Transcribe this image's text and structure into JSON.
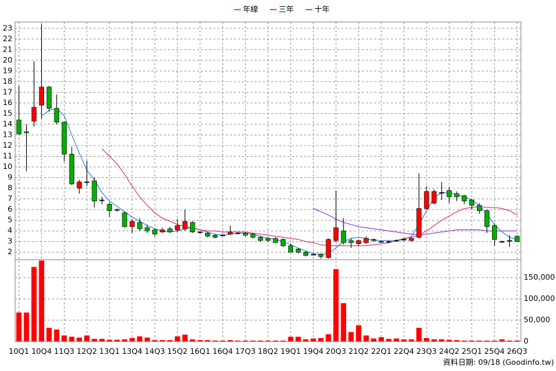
{
  "chart_data": {
    "type": "candlestick",
    "categories": [
      "10Q1",
      null,
      null,
      "10Q4",
      null,
      null,
      "11Q3",
      null,
      null,
      "12Q2",
      null,
      null,
      "13Q1",
      null,
      null,
      "13Q4",
      null,
      null,
      "14Q3",
      null,
      null,
      "15Q2",
      null,
      null,
      "16Q1",
      null,
      null,
      "16Q4",
      null,
      null,
      "17Q3",
      null,
      null,
      "18Q2",
      null,
      null,
      "19Q1",
      null,
      null,
      "19Q4",
      null,
      null,
      "20Q3",
      null,
      null,
      "21Q2",
      null,
      null,
      "22Q1",
      null,
      null,
      "22Q4",
      null,
      null,
      "23Q3",
      null,
      null,
      "24Q2",
      null,
      null,
      "25Q1",
      null,
      null,
      "25Q4",
      null,
      null,
      "26Q3"
    ],
    "open": [
      14.4,
      13.3,
      14.3,
      15.8,
      17.5,
      15.5,
      14.2,
      11.2,
      8.0,
      8.6,
      8.7,
      6.9,
      6.5,
      6.0,
      5.7,
      4.4,
      4.8,
      4.3,
      4.1,
      3.9,
      4.2,
      4.1,
      4.2,
      4.8,
      3.9,
      3.8,
      3.6,
      3.6,
      3.7,
      3.8,
      3.8,
      3.7,
      3.4,
      3.3,
      3.3,
      3.2,
      2.6,
      2.3,
      2.0,
      1.8,
      1.8,
      1.5,
      3.1,
      4.0,
      3.1,
      2.8,
      2.9,
      3.2,
      3.0,
      3.0,
      3.1,
      3.2,
      3.1,
      3.4,
      6.1,
      6.6,
      7.6,
      7.8,
      7.5,
      7.3,
      6.9,
      6.4,
      5.9,
      4.5,
      3.0,
      3.1,
      3.5
    ],
    "high": [
      17.6,
      14.0,
      19.9,
      23.4,
      17.6,
      16.8,
      14.3,
      11.9,
      8.8,
      10.6,
      9.0,
      7.2,
      6.7,
      6.1,
      5.8,
      5.1,
      5.2,
      4.6,
      4.2,
      4.3,
      4.4,
      5.1,
      6.0,
      4.9,
      4.0,
      3.9,
      3.7,
      3.7,
      4.5,
      3.9,
      3.9,
      3.8,
      3.5,
      3.4,
      3.4,
      3.3,
      2.8,
      2.4,
      2.1,
      1.9,
      1.9,
      3.3,
      7.8,
      5.2,
      3.3,
      3.2,
      3.5,
      3.3,
      3.1,
      3.1,
      3.2,
      3.3,
      3.4,
      9.4,
      8.2,
      7.9,
      8.6,
      8.1,
      7.7,
      7.4,
      7.0,
      6.6,
      6.0,
      4.7,
      3.1,
      3.6,
      3.6
    ],
    "low": [
      13.0,
      9.6,
      13.8,
      14.5,
      15.2,
      14.0,
      10.5,
      8.3,
      7.5,
      8.2,
      6.2,
      6.5,
      5.3,
      5.8,
      4.3,
      3.8,
      4.0,
      3.8,
      3.5,
      3.8,
      3.8,
      3.9,
      4.0,
      3.8,
      3.7,
      3.4,
      3.3,
      3.5,
      3.6,
      3.7,
      3.5,
      3.3,
      3.0,
      3.0,
      2.9,
      2.5,
      2.0,
      1.9,
      1.6,
      1.7,
      1.4,
      1.4,
      2.9,
      2.7,
      2.4,
      2.6,
      2.8,
      3.0,
      2.9,
      2.9,
      3.0,
      3.1,
      3.0,
      3.3,
      6.0,
      6.5,
      6.9,
      6.6,
      6.8,
      6.5,
      6.0,
      5.6,
      3.8,
      2.6,
      2.9,
      2.5,
      3.0
    ],
    "close": [
      13.1,
      13.2,
      15.6,
      17.5,
      15.5,
      14.2,
      11.2,
      8.4,
      8.6,
      8.6,
      6.8,
      6.9,
      5.9,
      6.0,
      4.4,
      4.9,
      4.2,
      4.0,
      3.7,
      4.1,
      3.9,
      4.5,
      4.9,
      3.9,
      3.9,
      3.5,
      3.4,
      3.6,
      3.9,
      3.8,
      3.6,
      3.4,
      3.1,
      3.1,
      2.9,
      2.6,
      2.0,
      2.0,
      1.7,
      1.8,
      1.6,
      3.2,
      4.3,
      2.9,
      2.9,
      3.1,
      3.3,
      3.1,
      3.0,
      3.0,
      3.1,
      3.2,
      3.3,
      6.1,
      7.7,
      7.7,
      7.6,
      7.2,
      7.2,
      6.8,
      6.4,
      5.9,
      4.4,
      3.2,
      3.0,
      3.1,
      3.0
    ],
    "up_color": "#ff0000",
    "down_color": "#00b000",
    "lines": [
      {
        "name": "年線",
        "color": "#1c7fd4",
        "values": [
          null,
          null,
          null,
          14.8,
          15.3,
          15.5,
          14.8,
          13.0,
          11.3,
          9.7,
          8.8,
          7.6,
          6.8,
          6.3,
          5.8,
          5.3,
          4.9,
          4.5,
          4.2,
          4.0,
          3.9,
          4.0,
          4.2,
          4.3,
          4.1,
          3.9,
          3.7,
          3.6,
          3.7,
          3.8,
          3.8,
          3.7,
          3.5,
          3.3,
          3.2,
          3.0,
          2.7,
          2.4,
          2.1,
          1.9,
          1.8,
          1.9,
          2.4,
          3.0,
          3.3,
          3.4,
          3.3,
          3.1,
          3.1,
          3.1,
          3.1,
          3.2,
          3.5,
          4.6,
          5.9,
          7.1,
          7.6,
          7.6,
          7.4,
          7.2,
          6.9,
          6.4,
          5.6,
          4.6,
          3.9,
          3.4,
          3.2
        ]
      },
      {
        "name": "三年",
        "color": "#e0206a",
        "values": [
          null,
          null,
          null,
          null,
          null,
          null,
          null,
          null,
          null,
          null,
          null,
          11.7,
          11.0,
          10.3,
          9.3,
          8.2,
          7.2,
          6.4,
          5.7,
          5.2,
          4.9,
          4.6,
          4.4,
          4.3,
          4.1,
          4.0,
          4.0,
          3.9,
          3.9,
          3.9,
          3.9,
          3.8,
          3.7,
          3.6,
          3.5,
          3.4,
          3.3,
          3.2,
          3.0,
          2.9,
          2.7,
          2.6,
          2.6,
          2.6,
          2.6,
          2.6,
          2.6,
          2.7,
          2.8,
          2.9,
          3.1,
          3.3,
          3.4,
          3.6,
          4.0,
          4.5,
          5.0,
          5.4,
          5.8,
          6.1,
          6.2,
          6.3,
          6.2,
          6.2,
          6.1,
          5.9,
          5.5
        ]
      },
      {
        "name": "十年",
        "color": "#8a2be2",
        "values": [
          null,
          null,
          null,
          null,
          null,
          null,
          null,
          null,
          null,
          null,
          null,
          null,
          null,
          null,
          null,
          null,
          null,
          null,
          null,
          null,
          null,
          null,
          null,
          null,
          null,
          null,
          null,
          null,
          null,
          null,
          null,
          null,
          null,
          null,
          null,
          null,
          null,
          null,
          null,
          6.1,
          5.8,
          5.5,
          5.1,
          4.8,
          4.6,
          4.4,
          4.3,
          4.2,
          4.1,
          4.0,
          3.9,
          3.8,
          3.7,
          3.6,
          3.7,
          3.8,
          3.9,
          4.0,
          4.1,
          4.1,
          4.1,
          4.1,
          4.0,
          4.0,
          4.0,
          4.0,
          4.0
        ]
      }
    ],
    "ylim": [
      1.3,
      23.6
    ],
    "yticks": [
      2,
      3,
      4,
      5,
      6,
      7,
      8,
      9,
      10,
      11,
      12,
      13,
      14,
      15,
      16,
      17,
      18,
      19,
      20,
      21,
      22,
      23
    ],
    "grid": true,
    "legend": "top",
    "volume": {
      "color": "#ff0000",
      "values": [
        68000,
        68000,
        175000,
        190000,
        32000,
        28000,
        14000,
        11000,
        9000,
        14000,
        6000,
        6000,
        4000,
        4000,
        5000,
        8000,
        12000,
        9000,
        3000,
        3000,
        3000,
        12000,
        16000,
        5000,
        3000,
        3000,
        2000,
        2000,
        3000,
        2000,
        2000,
        2000,
        2000,
        2000,
        2000,
        2000,
        11000,
        11000,
        5000,
        7000,
        8000,
        17000,
        170000,
        90000,
        22000,
        38000,
        14000,
        7000,
        10000,
        6000,
        7000,
        5000,
        5000,
        32000,
        8000,
        5000,
        5000,
        4000,
        3000,
        2000,
        2000,
        2000,
        2000,
        2000,
        5000,
        2000,
        2000
      ],
      "ylim": [
        0,
        192000
      ],
      "yticks": [
        0,
        {
          "value": 50000,
          "label": "50,000"
        },
        {
          "value": 100000,
          "label": "100,000"
        },
        {
          "value": 150000,
          "label": "150,000"
        }
      ]
    },
    "footnote": "資料日期: 09/18 (Goodinfo.tw)"
  }
}
